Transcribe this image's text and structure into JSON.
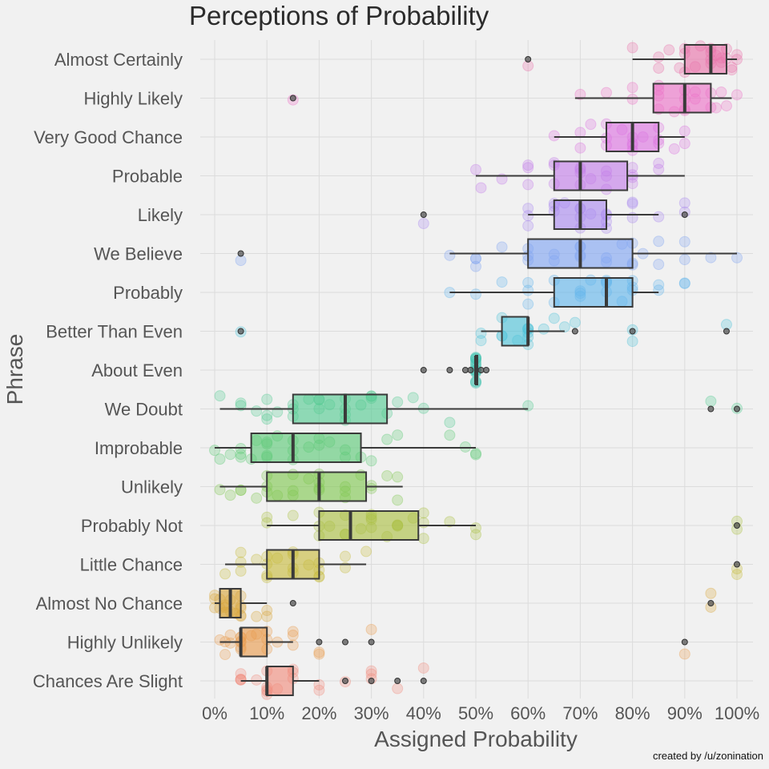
{
  "chart_data": {
    "type": "box",
    "title": "Perceptions of Probability",
    "xlabel": "Assigned Probability",
    "ylabel": "Phrase",
    "xlim": [
      -3,
      102
    ],
    "xticks": [
      0,
      10,
      20,
      30,
      40,
      50,
      60,
      70,
      80,
      90,
      100
    ],
    "xtick_labels": [
      "0%",
      "10%",
      "20%",
      "30%",
      "40%",
      "50%",
      "60%",
      "70%",
      "80%",
      "90%",
      "100%"
    ],
    "grid": true,
    "credit": "created by /u/zonination",
    "series": [
      {
        "name": "Almost Certainly",
        "color": "#e870a8",
        "box": {
          "whislo": 80,
          "q1": 90,
          "med": 95,
          "q3": 98,
          "whishi": 100
        },
        "outliers": [
          60
        ],
        "points": [
          60,
          80,
          85,
          85,
          87,
          89,
          90,
          90,
          90,
          92,
          93,
          95,
          95,
          95,
          95,
          96,
          97,
          97,
          98,
          98,
          99,
          99,
          100,
          100
        ]
      },
      {
        "name": "Highly Likely",
        "color": "#ec6fc6",
        "box": {
          "whislo": 69,
          "q1": 84,
          "med": 90,
          "q3": 95,
          "whishi": 99
        },
        "outliers": [
          15
        ],
        "points": [
          15,
          70,
          75,
          80,
          80,
          85,
          85,
          85,
          85,
          88,
          90,
          90,
          90,
          90,
          92,
          92,
          95,
          95,
          96,
          97,
          98,
          100
        ]
      },
      {
        "name": "Very Good Chance",
        "color": "#db70e0",
        "box": {
          "whislo": 65,
          "q1": 75,
          "med": 80,
          "q3": 85,
          "whishi": 90
        },
        "outliers": [],
        "points": [
          65,
          70,
          70,
          72,
          75,
          75,
          75,
          78,
          80,
          80,
          80,
          80,
          82,
          85,
          85,
          85,
          88,
          90,
          90
        ]
      },
      {
        "name": "Probable",
        "color": "#c27be8",
        "box": {
          "whislo": 50,
          "q1": 65,
          "med": 70,
          "q3": 79,
          "whishi": 90
        },
        "outliers": [],
        "points": [
          50,
          51,
          55,
          60,
          60,
          60,
          65,
          65,
          65,
          70,
          70,
          70,
          70,
          72,
          75,
          75,
          75,
          80,
          80,
          80,
          80,
          85,
          85
        ]
      },
      {
        "name": "Likely",
        "color": "#a888ef",
        "box": {
          "whislo": 60,
          "q1": 65,
          "med": 70,
          "q3": 75,
          "whishi": 85
        },
        "outliers": [
          40,
          90
        ],
        "points": [
          40,
          60,
          60,
          60,
          65,
          65,
          65,
          67,
          70,
          70,
          70,
          70,
          72,
          75,
          75,
          75,
          75,
          80,
          80,
          80,
          85,
          90,
          90
        ]
      },
      {
        "name": "We Believe",
        "color": "#7ea3f2",
        "box": {
          "whislo": 45,
          "q1": 60,
          "med": 70,
          "q3": 80,
          "whishi": 100
        },
        "outliers": [
          5
        ],
        "points": [
          5,
          45,
          50,
          50,
          50,
          55,
          60,
          60,
          60,
          65,
          65,
          70,
          70,
          70,
          70,
          75,
          75,
          78,
          80,
          80,
          80,
          82,
          85,
          85,
          90,
          90,
          95,
          100
        ]
      },
      {
        "name": "Probably",
        "color": "#60b4ec",
        "box": {
          "whislo": 45,
          "q1": 65,
          "med": 75,
          "q3": 80,
          "whishi": 85
        },
        "outliers": [],
        "points": [
          45,
          50,
          55,
          60,
          60,
          60,
          65,
          65,
          70,
          70,
          70,
          72,
          75,
          75,
          75,
          75,
          78,
          80,
          80,
          80,
          85,
          85,
          90,
          90
        ]
      },
      {
        "name": "Better Than Even",
        "color": "#4bc1d8",
        "box": {
          "whislo": 51,
          "q1": 55,
          "med": 60,
          "q3": 60,
          "whishi": 67
        },
        "outliers": [
          5,
          69,
          80,
          98
        ],
        "points": [
          5,
          51,
          51,
          55,
          55,
          55,
          58,
          60,
          60,
          60,
          60,
          60,
          60,
          63,
          65,
          67,
          69,
          80,
          80,
          98
        ]
      },
      {
        "name": "About Even",
        "color": "#3fc3b0",
        "box": {
          "whislo": 50,
          "q1": 50,
          "med": 50,
          "q3": 50,
          "whishi": 50
        },
        "outliers": [
          40,
          45,
          48,
          49,
          51,
          52
        ],
        "points": [
          50,
          50,
          50,
          50,
          50,
          50,
          50,
          50,
          50,
          50,
          50,
          50,
          50,
          50,
          50,
          50
        ]
      },
      {
        "name": "We Doubt",
        "color": "#50c990",
        "box": {
          "whislo": 1,
          "q1": 15,
          "med": 25,
          "q3": 33,
          "whishi": 60
        },
        "outliers": [
          95,
          100
        ],
        "points": [
          1,
          5,
          5,
          8,
          10,
          10,
          10,
          12,
          15,
          15,
          15,
          18,
          20,
          20,
          20,
          22,
          25,
          25,
          25,
          25,
          28,
          30,
          30,
          30,
          33,
          35,
          38,
          40,
          45,
          60,
          95,
          100
        ]
      },
      {
        "name": "Improbable",
        "color": "#59c874",
        "box": {
          "whislo": 0,
          "q1": 7,
          "med": 15,
          "q3": 28,
          "whishi": 50
        },
        "outliers": [],
        "points": [
          0,
          1,
          3,
          5,
          5,
          5,
          7,
          8,
          10,
          10,
          10,
          10,
          12,
          15,
          15,
          15,
          18,
          20,
          20,
          22,
          25,
          25,
          28,
          30,
          33,
          35,
          45,
          48,
          50,
          50
        ]
      },
      {
        "name": "Unlikely",
        "color": "#7ec64e",
        "box": {
          "whislo": 1,
          "q1": 10,
          "med": 20,
          "q3": 29,
          "whishi": 36
        },
        "outliers": [],
        "points": [
          1,
          3,
          5,
          5,
          8,
          10,
          10,
          10,
          12,
          15,
          15,
          15,
          18,
          20,
          20,
          20,
          20,
          25,
          25,
          25,
          28,
          30,
          30,
          33,
          35,
          35
        ]
      },
      {
        "name": "Probably Not",
        "color": "#a9bf3f",
        "box": {
          "whislo": 10,
          "q1": 20,
          "med": 26,
          "q3": 39,
          "whishi": 50
        },
        "outliers": [
          100
        ],
        "points": [
          10,
          10,
          15,
          20,
          20,
          20,
          22,
          25,
          25,
          25,
          28,
          30,
          30,
          30,
          30,
          33,
          35,
          35,
          35,
          38,
          40,
          40,
          40,
          45,
          50,
          50,
          100,
          100
        ]
      },
      {
        "name": "Little Chance",
        "color": "#c7b93a",
        "box": {
          "whislo": 2,
          "q1": 10,
          "med": 15,
          "q3": 20,
          "whishi": 29
        },
        "outliers": [
          100
        ],
        "points": [
          2,
          5,
          5,
          5,
          8,
          10,
          10,
          10,
          10,
          12,
          15,
          15,
          15,
          15,
          18,
          20,
          20,
          20,
          20,
          25,
          25,
          29,
          100,
          100
        ]
      },
      {
        "name": "Almost No Chance",
        "color": "#d9a53a",
        "box": {
          "whislo": 0,
          "q1": 1,
          "med": 3,
          "q3": 5,
          "whishi": 10
        },
        "outliers": [
          15,
          95
        ],
        "points": [
          0,
          0,
          0,
          1,
          1,
          2,
          2,
          2,
          3,
          3,
          4,
          5,
          5,
          5,
          5,
          5,
          8,
          10,
          10,
          95,
          95
        ]
      },
      {
        "name": "Highly Unlikely",
        "color": "#e89a4a",
        "box": {
          "whislo": 1,
          "q1": 5,
          "med": 5,
          "q3": 10,
          "whishi": 15
        },
        "outliers": [
          20,
          25,
          30,
          90
        ],
        "points": [
          1,
          2,
          2,
          3,
          3,
          5,
          5,
          5,
          5,
          5,
          5,
          7,
          8,
          10,
          10,
          10,
          12,
          15,
          15,
          15,
          20,
          20,
          30,
          90
        ]
      },
      {
        "name": "Chances Are Slight",
        "color": "#f08a7a",
        "box": {
          "whislo": 5,
          "q1": 10,
          "med": 10,
          "q3": 15,
          "whishi": 20
        },
        "outliers": [
          25,
          30,
          35,
          40
        ],
        "points": [
          5,
          5,
          5,
          5,
          8,
          10,
          10,
          10,
          10,
          10,
          12,
          15,
          15,
          15,
          20,
          20,
          25,
          30,
          30,
          30,
          35,
          40
        ]
      }
    ]
  }
}
